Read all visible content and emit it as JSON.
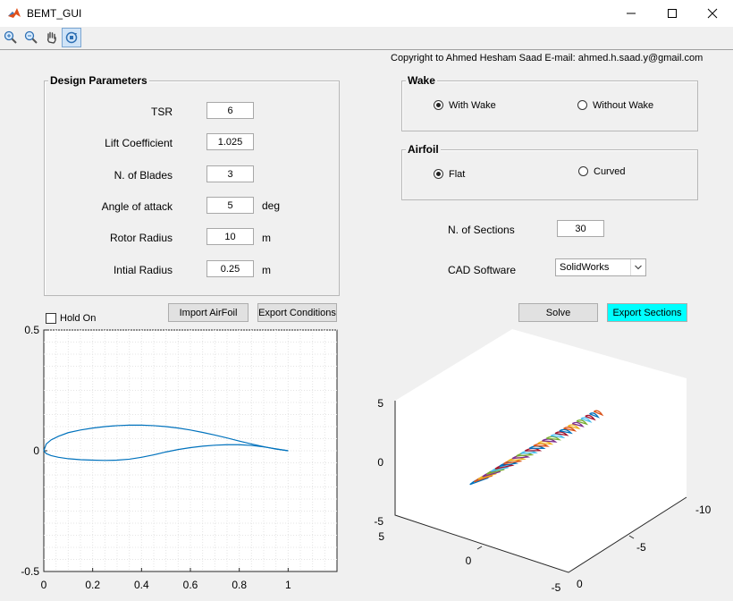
{
  "window": {
    "title": "BEMT_GUI",
    "minimize": "—",
    "maximize": "☐",
    "close": "✕"
  },
  "toolbar": {
    "items": [
      "zoom-in",
      "zoom-out",
      "pan",
      "rotate-3d"
    ]
  },
  "copyright": "Copyright to Ahmed Hesham Saad   E-mail: ahmed.h.saad.y@gmail.com",
  "design": {
    "title": "Design Parameters",
    "params": [
      {
        "label": "TSR",
        "value": "6",
        "unit": ""
      },
      {
        "label": "Lift Coefficient",
        "value": "1.025",
        "unit": ""
      },
      {
        "label": "N. of Blades",
        "value": "3",
        "unit": ""
      },
      {
        "label": "Angle of attack",
        "value": "5",
        "unit": "deg"
      },
      {
        "label": "Rotor Radius",
        "value": "10",
        "unit": "m"
      },
      {
        "label": "Intial Radius",
        "value": "0.25",
        "unit": "m"
      }
    ]
  },
  "wake": {
    "title": "Wake",
    "with": "With Wake",
    "without": "Without Wake",
    "selected": "With Wake"
  },
  "airfoil": {
    "title": "Airfoil",
    "flat": "Flat",
    "curved": "Curved",
    "selected": "Flat"
  },
  "sections": {
    "label": "N. of Sections",
    "value": "30"
  },
  "cad": {
    "label": "CAD Software",
    "selected": "SolidWorks"
  },
  "buttons": {
    "import": "Import AirFoil",
    "export_conditions": "Export Conditions",
    "solve": "Solve",
    "export_sections": "Export Sections"
  },
  "hold": {
    "label": "Hold On",
    "checked": false
  },
  "colors": {
    "accent_button": "#00ffff",
    "curve": "#0072bd"
  },
  "chart_data": [
    {
      "type": "line",
      "title": "",
      "xlabel": "",
      "ylabel": "",
      "xlim": [
        0,
        1.2
      ],
      "ylim": [
        -0.5,
        0.5
      ],
      "xticks": [
        "0",
        "0.2",
        "0.4",
        "0.6",
        "0.8",
        "1"
      ],
      "yticks": [
        "0.5",
        "0",
        "-0.5"
      ],
      "grid": "minor",
      "series": [
        {
          "x": [
            0,
            0.01,
            0.03,
            0.06,
            0.1,
            0.15,
            0.2,
            0.25,
            0.3,
            0.35,
            0.4,
            0.45,
            0.5,
            0.55,
            0.6,
            0.65,
            0.7,
            0.75,
            0.8,
            0.85,
            0.9,
            0.95,
            1.0
          ],
          "y": [
            0,
            0.028,
            0.045,
            0.06,
            0.075,
            0.086,
            0.094,
            0.1,
            0.104,
            0.106,
            0.106,
            0.104,
            0.1,
            0.094,
            0.086,
            0.076,
            0.065,
            0.053,
            0.04,
            0.028,
            0.017,
            0.007,
            0
          ]
        },
        {
          "x": [
            0,
            0.01,
            0.03,
            0.06,
            0.1,
            0.15,
            0.2,
            0.25,
            0.3,
            0.35,
            0.4,
            0.45,
            0.5,
            0.55,
            0.6,
            0.65,
            0.7,
            0.75,
            0.8,
            0.85,
            0.9,
            0.95,
            1.0
          ],
          "y": [
            0,
            -0.012,
            -0.02,
            -0.027,
            -0.033,
            -0.037,
            -0.039,
            -0.04,
            -0.039,
            -0.035,
            -0.027,
            -0.017,
            -0.005,
            0.005,
            0.013,
            0.019,
            0.023,
            0.025,
            0.025,
            0.022,
            0.016,
            0.008,
            0
          ]
        }
      ]
    },
    {
      "type": "3d-sections",
      "z_ticks": [
        "5",
        "0",
        "-5"
      ],
      "x_ticks": [
        "5",
        "0",
        "-5"
      ],
      "y_ticks": [
        "-10",
        "-5",
        "0"
      ],
      "sections": 30
    }
  ]
}
